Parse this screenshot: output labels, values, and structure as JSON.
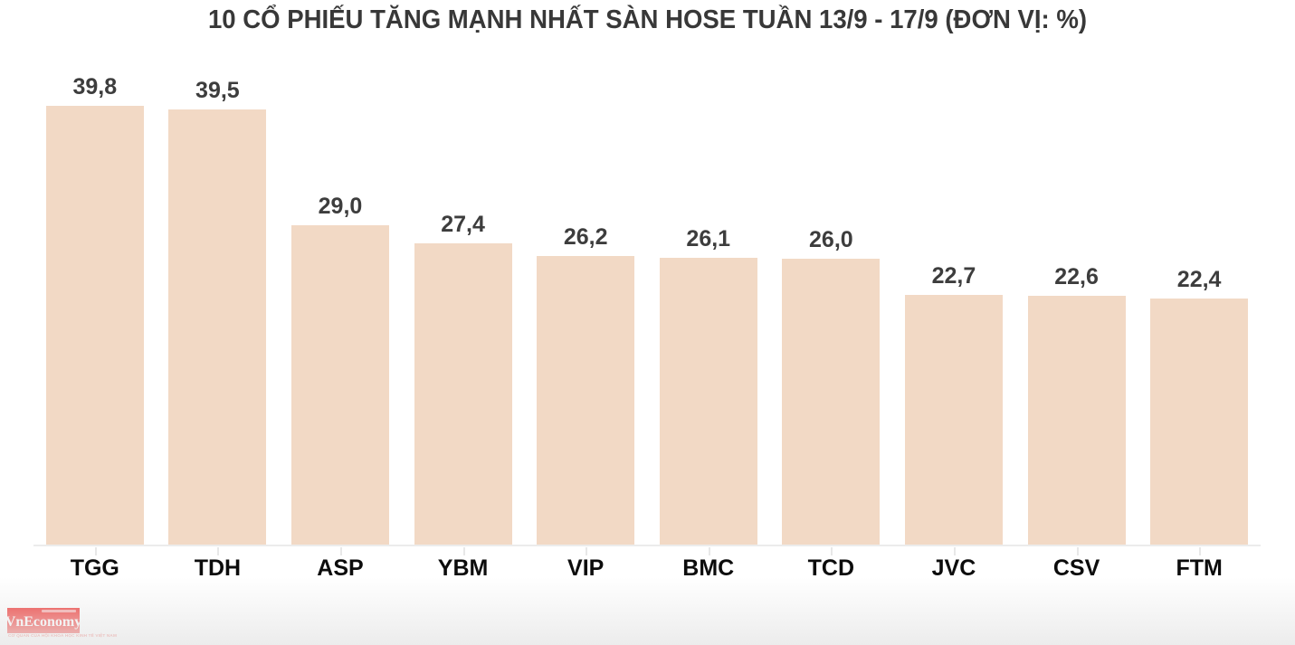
{
  "chart_data": {
    "type": "bar",
    "title": "10 CỔ PHIẾU TĂNG MẠNH NHẤT SÀN HOSE TUẦN 13/9 - 17/9 (ĐƠN VỊ: %)",
    "unit": "%",
    "categories": [
      "TGG",
      "TDH",
      "ASP",
      "YBM",
      "VIP",
      "BMC",
      "TCD",
      "JVC",
      "CSV",
      "FTM"
    ],
    "values": [
      39.8,
      39.5,
      29.0,
      27.4,
      26.2,
      26.1,
      26.0,
      22.7,
      22.6,
      22.4
    ],
    "value_labels": [
      "39,8",
      "39,5",
      "29,0",
      "27,4",
      "26,2",
      "26,1",
      "26,0",
      "22,7",
      "22,6",
      "22,4"
    ],
    "xlabel": "",
    "ylabel": "",
    "ylim": [
      0,
      44.5
    ],
    "grid": false,
    "legend": false,
    "bar_color": "#f2d9c5",
    "value_label_color": "#3d3d3d",
    "category_label_color": "#0c0c0c",
    "axis_line_color": "#ececec",
    "tick_color": "#e8e8e8"
  },
  "branding": {
    "logo_text": "VnEconomy",
    "logo_subtext": "CƠ QUAN CỦA HỘI KHOA HỌC KINH TẾ VIỆT NAM",
    "logo_bg_color": "#ee2724",
    "logo_text_color": "#ffffff"
  }
}
